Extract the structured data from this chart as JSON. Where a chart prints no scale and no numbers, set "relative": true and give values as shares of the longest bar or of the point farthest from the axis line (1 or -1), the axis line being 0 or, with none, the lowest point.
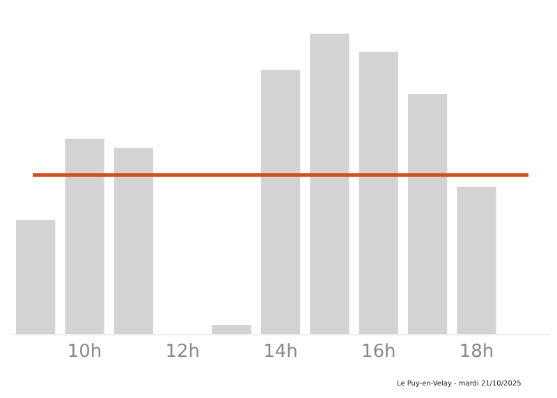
{
  "chart_data": {
    "type": "bar",
    "relative": true,
    "categories": [
      null,
      "10h",
      null,
      "12h",
      null,
      "14h",
      null,
      "16h",
      null,
      "18h",
      null
    ],
    "values": [
      0.38,
      0.65,
      0.62,
      0,
      0.03,
      0.88,
      1,
      0.94,
      0.8,
      0.49,
      0
    ],
    "color": "#d3d3d3",
    "ref_lines": [
      {
        "axis": "y",
        "value": 0.53,
        "color": "#d4501c"
      }
    ],
    "grid": false,
    "tick_labels": "x",
    "annotations": [
      "Le Puy-en-Velay - mardi 21/10/2025"
    ]
  }
}
